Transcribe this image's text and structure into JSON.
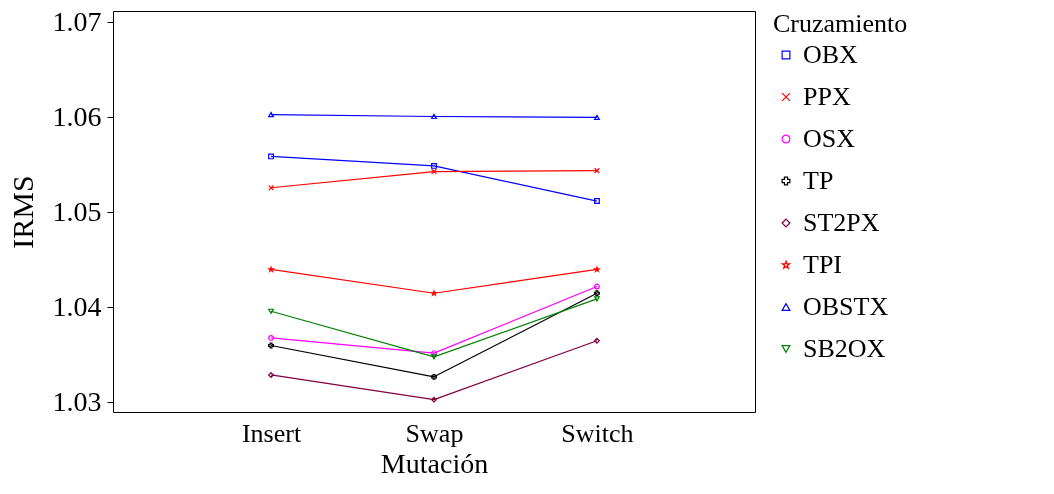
{
  "chart_data": {
    "type": "line",
    "xlabel": "Mutación",
    "ylabel": "IRMS",
    "legend_title": "Cruzamiento",
    "categories": [
      "Insert",
      "Swap",
      "Switch"
    ],
    "ylim": [
      1.029,
      1.0712
    ],
    "yticks": [
      1.03,
      1.04,
      1.05,
      1.06,
      1.07
    ],
    "grid": false,
    "legend": "right",
    "series": [
      {
        "name": "OBX",
        "color": "#0000ff",
        "marker": "square",
        "values": [
          1.0559,
          1.0549,
          1.0512
        ]
      },
      {
        "name": "PPX",
        "color": "#ff0000",
        "marker": "x",
        "values": [
          1.0526,
          1.0543,
          1.0544
        ]
      },
      {
        "name": "OSX",
        "color": "#ff00ff",
        "marker": "circle",
        "values": [
          1.0368,
          1.0352,
          1.0422
        ]
      },
      {
        "name": "TP",
        "color": "#000000",
        "marker": "plus",
        "values": [
          1.036,
          1.0327,
          1.0415
        ]
      },
      {
        "name": "ST2PX",
        "color": "#800040",
        "marker": "diamond",
        "values": [
          1.0329,
          1.0303,
          1.0365
        ]
      },
      {
        "name": "TPI",
        "color": "#ff0000",
        "marker": "star",
        "values": [
          1.044,
          1.0415,
          1.044
        ]
      },
      {
        "name": "OBSTX",
        "color": "#0000ff",
        "marker": "triangle",
        "values": [
          1.0603,
          1.0601,
          1.06
        ]
      },
      {
        "name": "SB2OX",
        "color": "#008000",
        "marker": "triangle-down",
        "values": [
          1.0396,
          1.0348,
          1.0409
        ]
      }
    ]
  }
}
